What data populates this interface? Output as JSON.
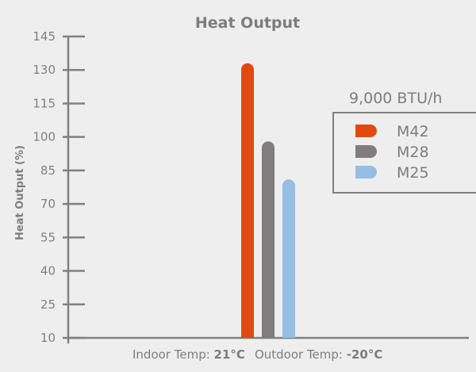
{
  "chart_data": {
    "type": "bar",
    "title": "Heat Output",
    "ylabel": "Heat Output (%)",
    "xlabel_parts": {
      "indoor_label": "Indoor Temp: ",
      "indoor_value": "21°C",
      "outdoor_label": "Outdoor Temp: ",
      "outdoor_value": "-20°C"
    },
    "ylim": [
      10,
      145
    ],
    "yticks": [
      145,
      130,
      115,
      100,
      85,
      70,
      55,
      40,
      25,
      10
    ],
    "grid": false,
    "legend_title": "9,000 BTU/h",
    "legend_position": "right",
    "series": [
      {
        "name": "M42",
        "value": 133,
        "color": "#e04a12"
      },
      {
        "name": "M28",
        "value": 98,
        "color": "#7f7d7e"
      },
      {
        "name": "M25",
        "value": 81,
        "color": "#96bde2"
      }
    ]
  }
}
